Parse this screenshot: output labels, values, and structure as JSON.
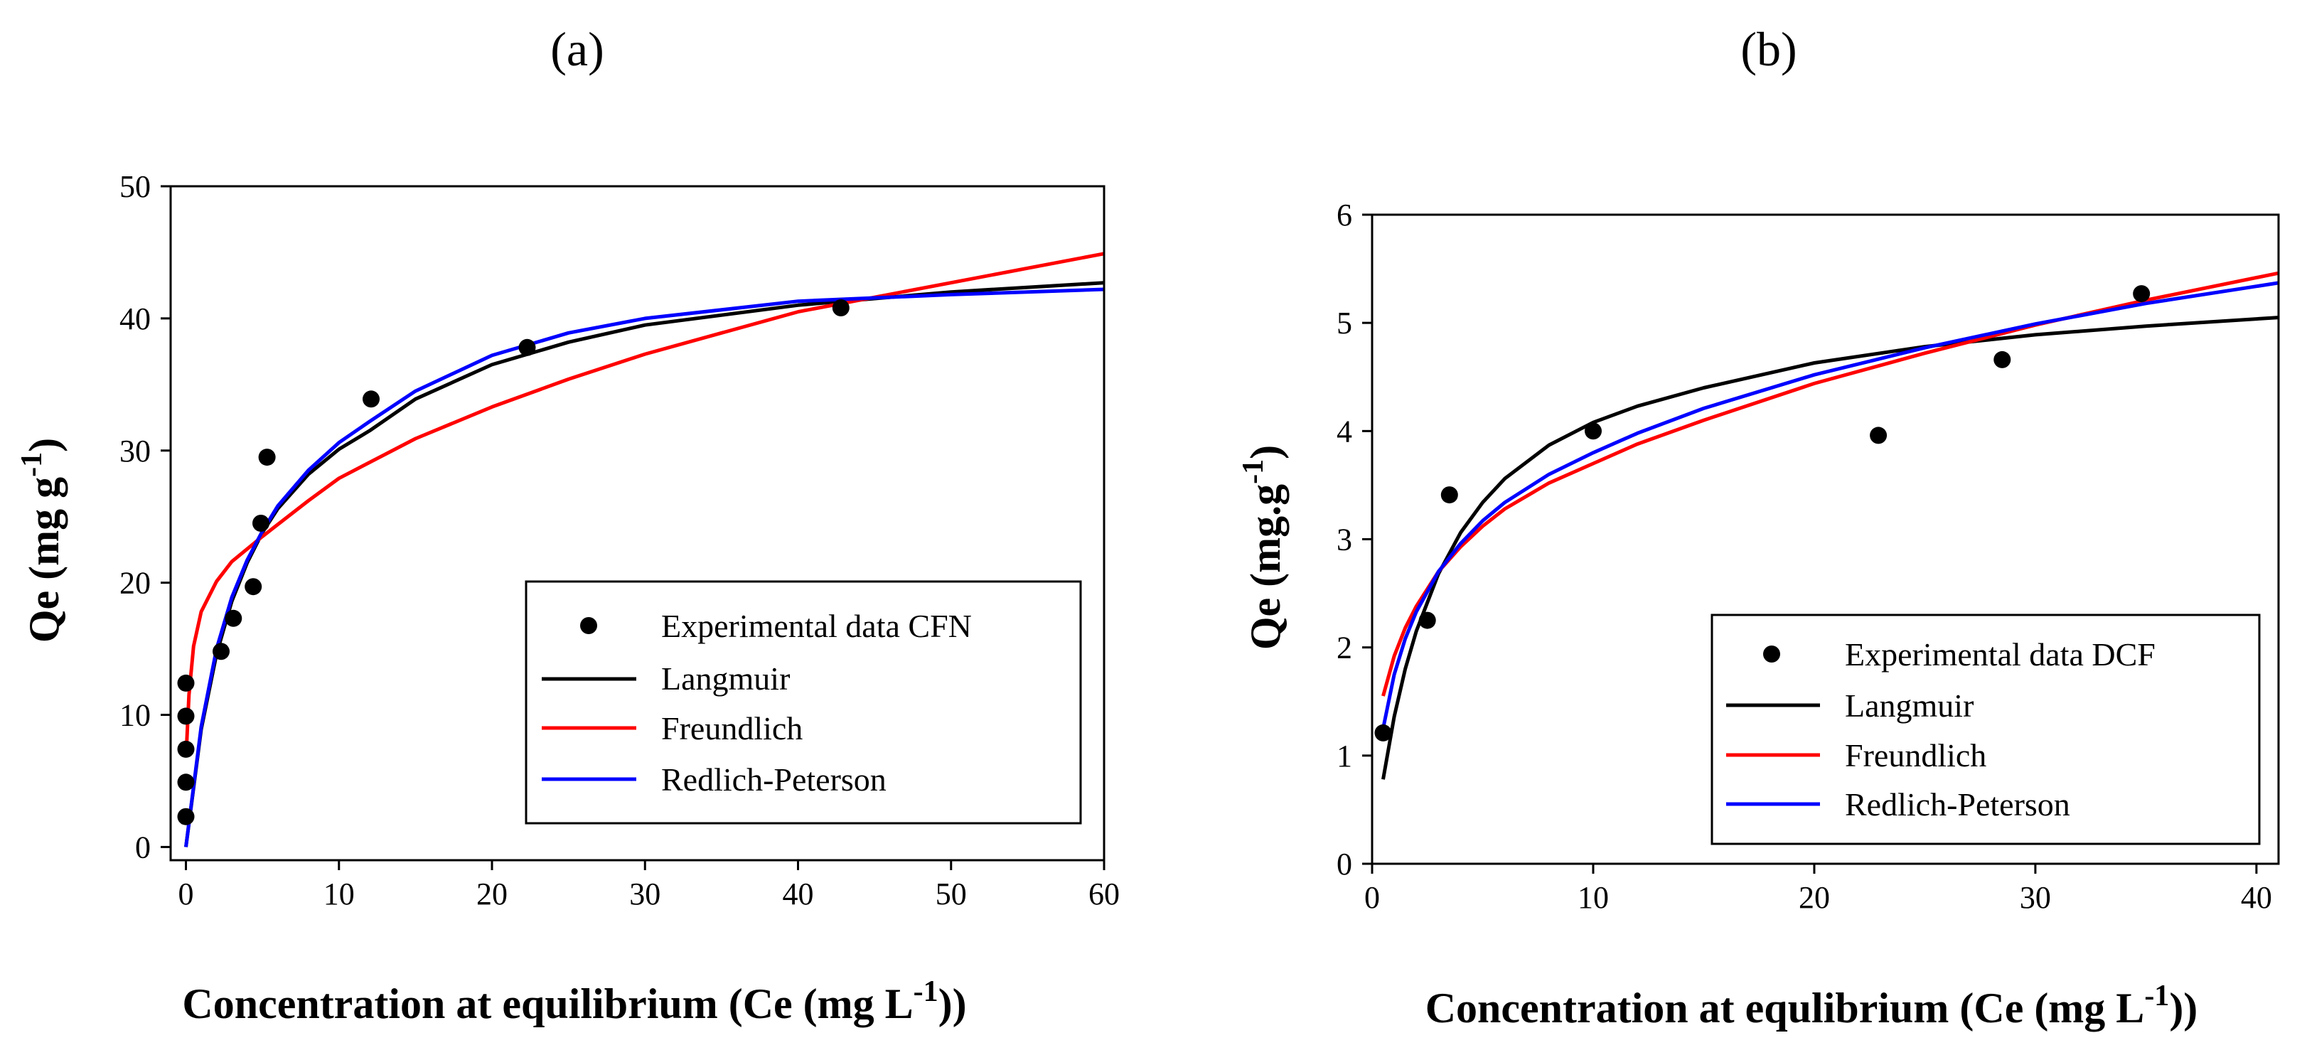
{
  "chart_data": [
    {
      "type": "scatter",
      "panel_label": "(a)",
      "title": "",
      "xlabel": "Concentration at equilibrium (Ce (mg L",
      "xlabel_sup": "-1",
      "xlabel_end": "))",
      "ylabel": "Qe (mg g",
      "ylabel_sup": "-1",
      "ylabel_end": ")",
      "xlim": [
        -1,
        60
      ],
      "ylim": [
        -1,
        50
      ],
      "xticks": [
        0,
        10,
        20,
        30,
        40,
        50,
        60
      ],
      "yticks": [
        0,
        10,
        20,
        30,
        40,
        50
      ],
      "grid": false,
      "legend_position": "bottom-right",
      "series": [
        {
          "name": "Experimental data CFN",
          "kind": "points",
          "color": "#000000",
          "x": [
            0,
            0,
            0,
            0,
            0,
            2.3,
            3.1,
            4.4,
            4.9,
            5.3,
            12.1,
            22.3,
            42.8
          ],
          "y": [
            2.3,
            4.9,
            7.4,
            9.9,
            12.4,
            14.8,
            17.3,
            19.7,
            24.5,
            29.5,
            33.9,
            37.8,
            40.8
          ]
        },
        {
          "name": "Langmuir",
          "kind": "line",
          "color": "#000000",
          "x": [
            0,
            1,
            2,
            3,
            4,
            5,
            6,
            8,
            10,
            12,
            15,
            20,
            25,
            30,
            40,
            50,
            60
          ],
          "y": [
            0,
            8.9,
            14.6,
            18.6,
            21.5,
            23.8,
            25.6,
            28.2,
            30.1,
            31.5,
            33.9,
            36.5,
            38.2,
            39.5,
            41.0,
            42.0,
            42.7
          ]
        },
        {
          "name": "Freundlich",
          "kind": "line",
          "color": "#ff0000",
          "x": [
            0.05,
            0.2,
            0.5,
            1,
            2,
            3,
            5,
            8,
            10,
            15,
            20,
            25,
            30,
            40,
            50,
            60
          ],
          "y": [
            7.8,
            11.5,
            15.2,
            17.8,
            20.1,
            21.6,
            23.5,
            26.2,
            27.9,
            30.9,
            33.3,
            35.4,
            37.3,
            40.5,
            42.7,
            44.9
          ]
        },
        {
          "name": "Redlich-Peterson",
          "kind": "line",
          "color": "#0000ff",
          "x": [
            0,
            1,
            2,
            3,
            4,
            5,
            6,
            8,
            10,
            12,
            15,
            20,
            25,
            30,
            40,
            50,
            60
          ],
          "y": [
            0,
            9.1,
            15.0,
            18.9,
            21.7,
            23.9,
            25.8,
            28.5,
            30.6,
            32.2,
            34.5,
            37.2,
            38.9,
            40.0,
            41.3,
            41.8,
            42.2
          ]
        }
      ]
    },
    {
      "type": "scatter",
      "panel_label": "(b)",
      "title": "",
      "xlabel": "Concentration at equlibrium (Ce (mg L",
      "xlabel_sup": "-1",
      "xlabel_end": "))",
      "ylabel": "Qe  (mg.g",
      "ylabel_sup": "-1",
      "ylabel_end": ")",
      "xlim": [
        0,
        41
      ],
      "ylim": [
        0,
        6
      ],
      "xticks": [
        0,
        10,
        20,
        30,
        40
      ],
      "yticks": [
        0,
        1,
        2,
        3,
        4,
        5,
        6
      ],
      "grid": false,
      "legend_position": "bottom-right",
      "series": [
        {
          "name": "Experimental data DCF",
          "kind": "points",
          "color": "#000000",
          "x": [
            0.5,
            2.5,
            3.5,
            10.0,
            22.9,
            28.5,
            34.8
          ],
          "y": [
            1.21,
            2.25,
            3.41,
            4.0,
            3.96,
            4.66,
            5.27
          ]
        },
        {
          "name": "Langmuir",
          "kind": "line",
          "color": "#000000",
          "x": [
            0.5,
            1,
            1.5,
            2,
            3,
            4,
            5,
            6,
            8,
            10,
            12,
            15,
            20,
            25,
            30,
            35,
            41
          ],
          "y": [
            0.78,
            1.36,
            1.8,
            2.15,
            2.68,
            3.06,
            3.34,
            3.56,
            3.87,
            4.08,
            4.23,
            4.4,
            4.63,
            4.78,
            4.89,
            4.97,
            5.05
          ]
        },
        {
          "name": "Freundlich",
          "kind": "line",
          "color": "#ff0000",
          "x": [
            0.5,
            1,
            1.5,
            2,
            3,
            4,
            5,
            6,
            8,
            10,
            12,
            15,
            20,
            25,
            30,
            35,
            41
          ],
          "y": [
            1.55,
            1.92,
            2.18,
            2.38,
            2.7,
            2.93,
            3.12,
            3.28,
            3.52,
            3.7,
            3.88,
            4.1,
            4.44,
            4.72,
            4.98,
            5.21,
            5.46
          ]
        },
        {
          "name": "Redlich-Peterson",
          "kind": "line",
          "color": "#0000ff",
          "x": [
            0.5,
            1,
            1.5,
            2,
            3,
            4,
            5,
            6,
            8,
            10,
            12,
            15,
            20,
            25,
            30,
            35,
            41
          ],
          "y": [
            1.25,
            1.75,
            2.08,
            2.33,
            2.7,
            2.96,
            3.17,
            3.34,
            3.6,
            3.8,
            3.98,
            4.21,
            4.52,
            4.77,
            4.99,
            5.18,
            5.37
          ]
        }
      ]
    }
  ]
}
